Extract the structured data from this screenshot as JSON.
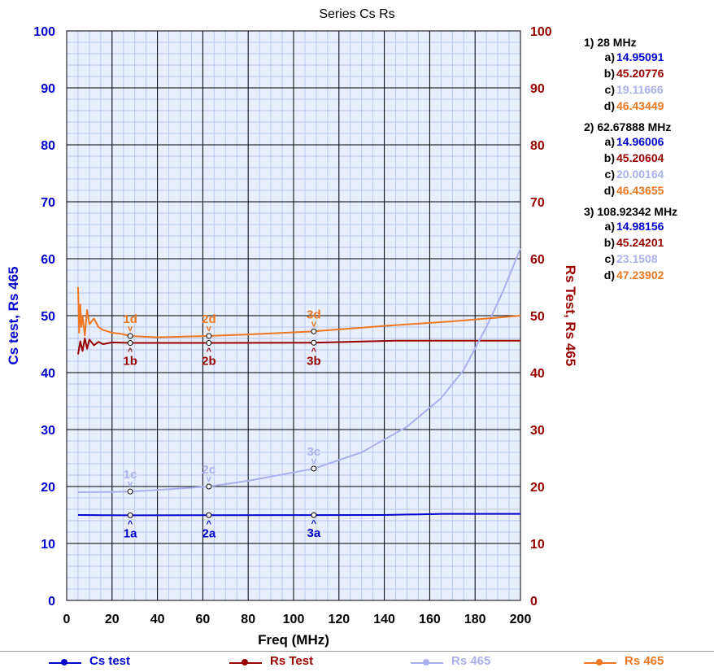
{
  "chart_data": {
    "type": "line",
    "title": "Series Cs Rs",
    "xlabel": "Freq (MHz)",
    "ylabel_left": "Cs test, Rs 465",
    "ylabel_right": "Rs Test, Rs 465",
    "xlim": [
      0,
      200
    ],
    "ylim_left": [
      0,
      100
    ],
    "ylim_right": [
      0,
      100
    ],
    "x_ticks": [
      "0",
      "20",
      "40",
      "60",
      "80",
      "100",
      "120",
      "140",
      "160",
      "180",
      "200"
    ],
    "y_ticks_left": [
      "0",
      "10",
      "20",
      "30",
      "40",
      "50",
      "60",
      "70",
      "80",
      "90",
      "100"
    ],
    "y_ticks_right": [
      "0",
      "10",
      "20",
      "30",
      "40",
      "50",
      "60",
      "70",
      "80",
      "90",
      "100"
    ],
    "grid": true,
    "legend_position": "bottom",
    "series": [
      {
        "name": "Cs test",
        "color": "#0000cc",
        "axis": "left",
        "x": [
          5,
          28,
          62.68,
          108.92,
          140,
          166,
          200
        ],
        "y": [
          15.0,
          14.95,
          14.96,
          14.98,
          15.0,
          15.2,
          15.2
        ]
      },
      {
        "name": "Rs Test",
        "color": "#990000",
        "axis": "right",
        "x": [
          5,
          6,
          7,
          8,
          9,
          10,
          12,
          14,
          16,
          20,
          28,
          62.68,
          108.92,
          145,
          200
        ],
        "y": [
          43.2,
          45.5,
          43.8,
          46.0,
          44.2,
          45.8,
          44.8,
          45.4,
          45.0,
          45.3,
          45.21,
          45.21,
          45.24,
          45.6,
          45.6
        ]
      },
      {
        "name": "Rs 465",
        "color": "#aab0ee",
        "axis": "left",
        "x": [
          5,
          20,
          28,
          40,
          62.68,
          80,
          108.92,
          130,
          150,
          165,
          175,
          185,
          192,
          200
        ],
        "y": [
          19.0,
          19.05,
          19.12,
          19.4,
          20.0,
          21.0,
          23.15,
          26.0,
          30.5,
          35.5,
          40.5,
          48.0,
          54.0,
          61.8
        ]
      },
      {
        "name": "Rs 465",
        "color": "#ee7722",
        "axis": "right",
        "x": [
          5,
          5.5,
          6,
          6.5,
          7,
          8,
          9,
          10,
          12,
          14,
          16,
          20,
          24,
          28,
          40,
          62.68,
          80,
          108.92,
          140,
          170,
          200
        ],
        "y": [
          55.0,
          47.0,
          52.0,
          48.0,
          50.0,
          46.5,
          51.0,
          48.5,
          49.5,
          48.0,
          47.5,
          47.0,
          46.8,
          46.43,
          46.2,
          46.44,
          46.7,
          47.24,
          48.2,
          49.0,
          50.0
        ]
      }
    ],
    "markers": [
      {
        "label": "1",
        "x": 28,
        "values": {
          "a": 14.95091,
          "b": 45.20776,
          "c": 19.11666,
          "d": 46.43449
        }
      },
      {
        "label": "2",
        "x": 62.67888,
        "values": {
          "a": 14.96006,
          "b": 45.20604,
          "c": 20.00164,
          "d": 46.43655
        }
      },
      {
        "label": "3",
        "x": 108.92342,
        "values": {
          "a": 14.98156,
          "b": 45.24201,
          "c": 23.1508,
          "d": 47.23902
        }
      }
    ]
  },
  "marker_panel": [
    {
      "header": "1) 28 MHz",
      "rows": [
        {
          "label": "a)",
          "value": "14.95091",
          "color": "#0000cc"
        },
        {
          "label": "b)",
          "value": "45.20776",
          "color": "#990000"
        },
        {
          "label": "c)",
          "value": "19.11666",
          "color": "#aab0ee"
        },
        {
          "label": "d)",
          "value": "46.43449",
          "color": "#ee7722"
        }
      ]
    },
    {
      "header": "2) 62.67888 MHz",
      "rows": [
        {
          "label": "a)",
          "value": "14.96006",
          "color": "#0000cc"
        },
        {
          "label": "b)",
          "value": "45.20604",
          "color": "#990000"
        },
        {
          "label": "c)",
          "value": "20.00164",
          "color": "#aab0ee"
        },
        {
          "label": "d)",
          "value": "46.43655",
          "color": "#ee7722"
        }
      ]
    },
    {
      "header": "3) 108.92342 MHz",
      "rows": [
        {
          "label": "a)",
          "value": "14.98156",
          "color": "#0000cc"
        },
        {
          "label": "b)",
          "value": "45.24201",
          "color": "#990000"
        },
        {
          "label": "c)",
          "value": "23.1508",
          "color": "#aab0ee"
        },
        {
          "label": "d)",
          "value": "47.23902",
          "color": "#ee7722"
        }
      ]
    }
  ],
  "legend": [
    {
      "name": "Cs test",
      "color": "#0000cc"
    },
    {
      "name": "Rs Test",
      "color": "#990000"
    },
    {
      "name": "Rs 465",
      "color": "#aab0ee"
    },
    {
      "name": "Rs 465",
      "color": "#ee7722"
    }
  ]
}
